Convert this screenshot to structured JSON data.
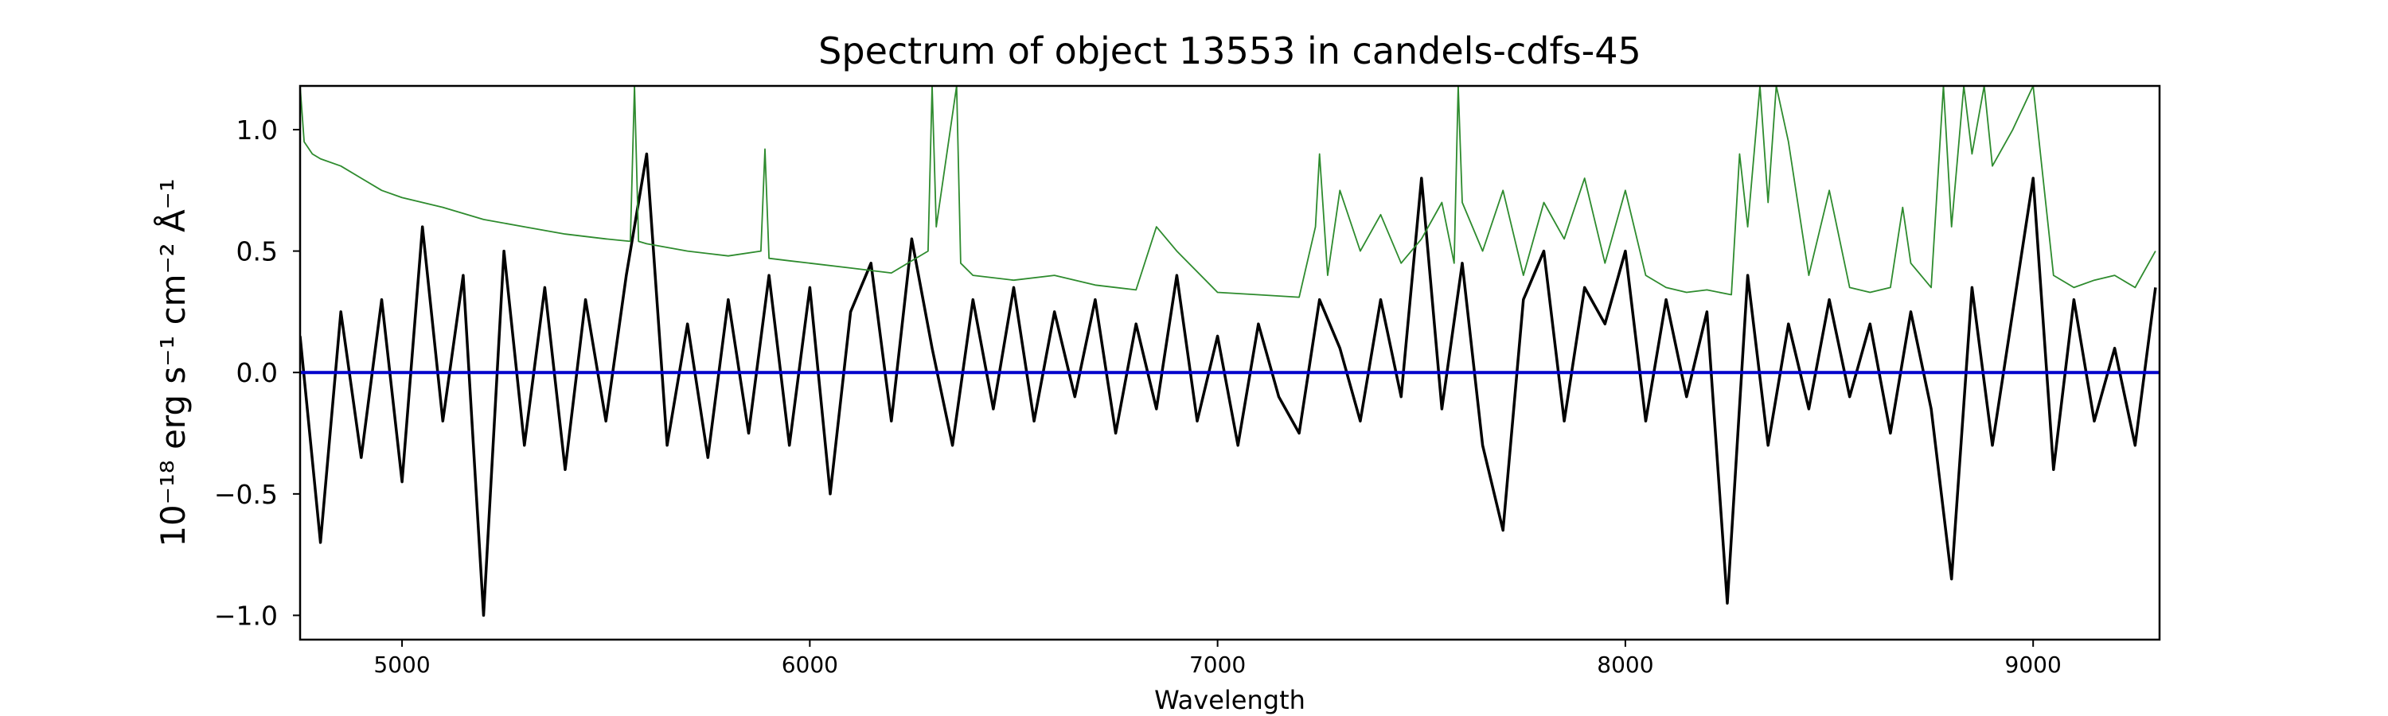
{
  "chart_data": {
    "type": "line",
    "title": "Spectrum of object 13553 in candels-cdfs-45",
    "xlabel": "Wavelength",
    "ylabel": "10⁻¹⁸ erg s⁻¹ cm⁻² Å⁻¹",
    "xlim": [
      4750,
      9310
    ],
    "ylim": [
      -1.1,
      1.18
    ],
    "xticks": [
      5000,
      6000,
      7000,
      8000,
      9000
    ],
    "xtick_labels": [
      "5000",
      "6000",
      "7000",
      "8000",
      "9000"
    ],
    "yticks": [
      -1.0,
      -0.5,
      0.0,
      0.5,
      1.0
    ],
    "ytick_labels": [
      "−1.0",
      "−0.5",
      "0.0",
      "0.5",
      "1.0"
    ],
    "grid": false,
    "series": [
      {
        "color": "#000000",
        "x": [
          4750,
          4800,
          4850,
          4900,
          4950,
          5000,
          5050,
          5100,
          5150,
          5200,
          5250,
          5300,
          5350,
          5400,
          5450,
          5500,
          5550,
          5600,
          5650,
          5700,
          5750,
          5800,
          5850,
          5900,
          5950,
          6000,
          6050,
          6100,
          6150,
          6200,
          6250,
          6300,
          6350,
          6400,
          6450,
          6500,
          6550,
          6600,
          6650,
          6700,
          6750,
          6800,
          6850,
          6900,
          6950,
          7000,
          7050,
          7100,
          7150,
          7200,
          7250,
          7300,
          7350,
          7400,
          7450,
          7500,
          7550,
          7600,
          7650,
          7700,
          7750,
          7800,
          7850,
          7900,
          7950,
          8000,
          8050,
          8100,
          8150,
          8200,
          8250,
          8300,
          8350,
          8400,
          8450,
          8500,
          8550,
          8600,
          8650,
          8700,
          8750,
          8800,
          8850,
          8900,
          8950,
          9000,
          9050,
          9100,
          9150,
          9200,
          9250,
          9300
        ],
        "y": [
          0.15,
          -0.7,
          0.25,
          -0.35,
          0.3,
          -0.45,
          0.6,
          -0.2,
          0.4,
          -1.0,
          0.5,
          -0.3,
          0.35,
          -0.4,
          0.3,
          -0.2,
          0.4,
          0.9,
          -0.3,
          0.2,
          -0.35,
          0.3,
          -0.25,
          0.4,
          -0.3,
          0.35,
          -0.5,
          0.25,
          0.45,
          -0.2,
          0.55,
          0.1,
          -0.3,
          0.3,
          -0.15,
          0.35,
          -0.2,
          0.25,
          -0.1,
          0.3,
          -0.25,
          0.2,
          -0.15,
          0.4,
          -0.2,
          0.15,
          -0.3,
          0.2,
          -0.1,
          -0.25,
          0.3,
          0.1,
          -0.2,
          0.3,
          -0.1,
          0.8,
          -0.15,
          0.45,
          -0.3,
          -0.65,
          0.3,
          0.5,
          -0.2,
          0.35,
          0.2,
          0.5,
          -0.2,
          0.3,
          -0.1,
          0.25,
          -0.95,
          0.4,
          -0.3,
          0.2,
          -0.15,
          0.3,
          -0.1,
          0.2,
          -0.25,
          0.25,
          -0.15,
          -0.85,
          0.35,
          -0.3,
          0.25,
          0.8,
          -0.4,
          0.3,
          -0.2,
          0.1,
          -0.3,
          0.35
        ]
      },
      {
        "color": "#2e8b2e",
        "x": [
          4750,
          4760,
          4780,
          4800,
          4850,
          4900,
          4950,
          5000,
          5100,
          5200,
          5300,
          5400,
          5500,
          5560,
          5570,
          5580,
          5600,
          5700,
          5800,
          5880,
          5890,
          5900,
          5950,
          6000,
          6100,
          6200,
          6290,
          6300,
          6310,
          6360,
          6370,
          6400,
          6500,
          6600,
          6700,
          6800,
          6850,
          6900,
          7000,
          7100,
          7200,
          7240,
          7250,
          7270,
          7300,
          7350,
          7400,
          7450,
          7500,
          7550,
          7580,
          7590,
          7600,
          7650,
          7700,
          7750,
          7800,
          7850,
          7900,
          7950,
          8000,
          8050,
          8100,
          8150,
          8200,
          8260,
          8280,
          8300,
          8330,
          8350,
          8370,
          8400,
          8450,
          8500,
          8550,
          8600,
          8650,
          8680,
          8700,
          8750,
          8780,
          8800,
          8830,
          8850,
          8880,
          8900,
          8950,
          9000,
          9050,
          9100,
          9150,
          9200,
          9250,
          9300
        ],
        "y": [
          1.18,
          0.95,
          0.9,
          0.88,
          0.85,
          0.8,
          0.75,
          0.72,
          0.68,
          0.63,
          0.6,
          0.57,
          0.55,
          0.54,
          1.18,
          0.54,
          0.53,
          0.5,
          0.48,
          0.5,
          0.92,
          0.47,
          0.46,
          0.45,
          0.43,
          0.41,
          0.5,
          1.18,
          0.6,
          1.18,
          0.45,
          0.4,
          0.38,
          0.4,
          0.36,
          0.34,
          0.6,
          0.5,
          0.33,
          0.32,
          0.31,
          0.6,
          0.9,
          0.4,
          0.75,
          0.5,
          0.65,
          0.45,
          0.55,
          0.7,
          0.45,
          1.18,
          0.7,
          0.5,
          0.75,
          0.4,
          0.7,
          0.55,
          0.8,
          0.45,
          0.75,
          0.4,
          0.35,
          0.33,
          0.34,
          0.32,
          0.9,
          0.6,
          1.18,
          0.7,
          1.18,
          0.95,
          0.4,
          0.75,
          0.35,
          0.33,
          0.35,
          0.68,
          0.45,
          0.35,
          1.18,
          0.6,
          1.18,
          0.9,
          1.18,
          0.85,
          1.0,
          1.18,
          0.4,
          0.35,
          0.38,
          0.4,
          0.35,
          0.5
        ]
      },
      {
        "color": "#0000cc",
        "x": [
          4750,
          9310
        ],
        "y": [
          0.0,
          0.0
        ]
      }
    ]
  }
}
